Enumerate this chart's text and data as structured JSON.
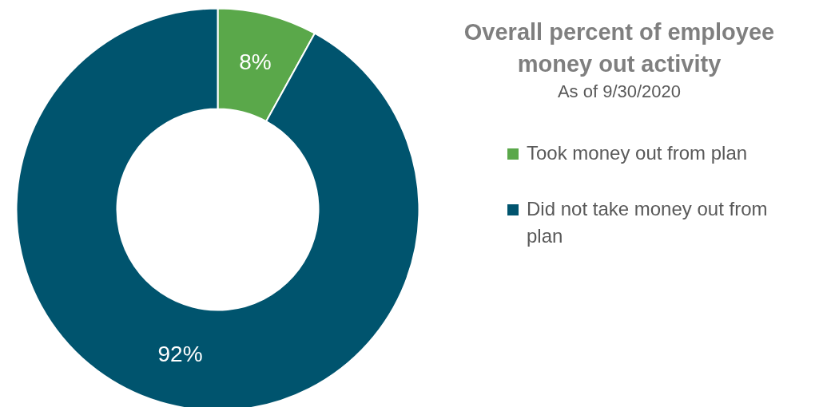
{
  "chart_data": {
    "type": "donut",
    "title": "Overall percent of employee money out activity",
    "subtitle": "As of 9/30/2020",
    "categories": [
      "Took money out from plan",
      "Did not take money out from plan"
    ],
    "values": [
      8,
      92
    ],
    "colors": [
      "#5aa84a",
      "#00546e"
    ],
    "value_labels": [
      "8%",
      "92%"
    ],
    "legend": "right"
  }
}
